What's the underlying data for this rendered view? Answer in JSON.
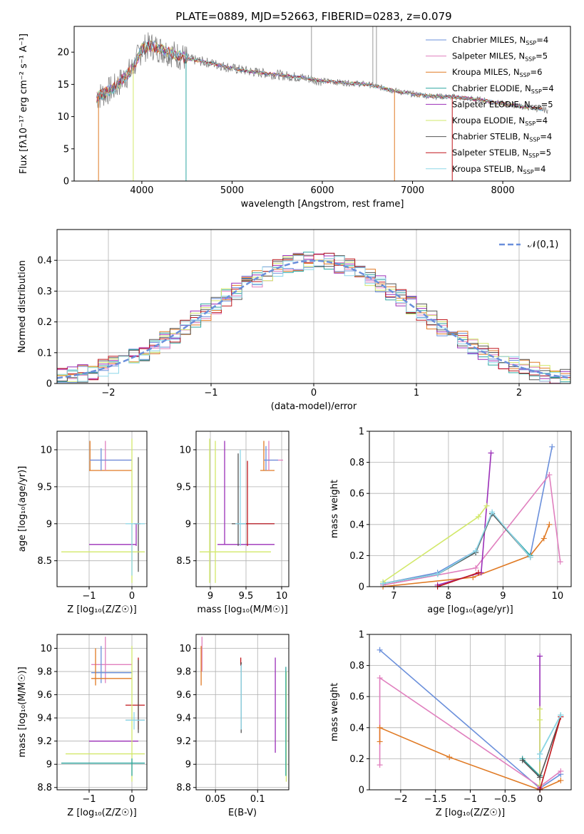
{
  "figure_title": "PLATE=0889, MJD=52663, FIBERID=0283, z=0.079",
  "models": [
    {
      "name": "Chabrier MILES",
      "nssp": "4",
      "color": "#6a8fdb"
    },
    {
      "name": "Salpeter MILES",
      "nssp": "5",
      "color": "#e07fbe"
    },
    {
      "name": "Kroupa MILES",
      "nssp": "6",
      "color": "#e07a24"
    },
    {
      "name": "Chabrier ELODIE",
      "nssp": "4",
      "color": "#2ca6a0"
    },
    {
      "name": "Salpeter ELODIE",
      "nssp": "5",
      "color": "#9b2fb8"
    },
    {
      "name": "Kroupa ELODIE",
      "nssp": "4",
      "color": "#d2e86a"
    },
    {
      "name": "Chabrier STELIB",
      "nssp": "4",
      "color": "#555555"
    },
    {
      "name": "Salpeter STELIB",
      "nssp": "5",
      "color": "#c0161b"
    },
    {
      "name": "Kroupa STELIB",
      "nssp": "4",
      "color": "#8dd7e8"
    }
  ],
  "chart_data": [
    {
      "id": "spectrum",
      "type": "line",
      "title": "PLATE=0889, MJD=52663, FIBERID=0283, z=0.079",
      "xlabel": "wavelength [Angstrom, rest frame]",
      "ylabel": "Flux [fλ10⁻¹⁷ erg cm⁻² s⁻¹ A⁻¹]",
      "xlim": [
        3250,
        8750
      ],
      "ylim": [
        0,
        24
      ],
      "xticks": [
        4000,
        5000,
        6000,
        7000,
        8000
      ],
      "yticks": [
        0,
        5,
        10,
        15,
        20
      ],
      "data_envelope": {
        "x": [
          3500,
          3700,
          3900,
          4000,
          4100,
          4300,
          4500,
          4800,
          5000,
          5200,
          5500,
          5800,
          6000,
          6300,
          6500,
          6800,
          7000,
          7200,
          7500,
          7800,
          8000,
          8200,
          8500
        ],
        "y": [
          13.0,
          14.5,
          17.5,
          20.5,
          21.0,
          20.0,
          19.0,
          18.2,
          17.5,
          17.0,
          16.5,
          16.0,
          15.5,
          15.2,
          15.0,
          14.0,
          13.5,
          13.2,
          13.0,
          12.5,
          12.0,
          11.6,
          11.0
        ]
      },
      "legend_location": "upper right",
      "grid": false
    },
    {
      "id": "residuals",
      "type": "histogram",
      "xlabel": "(data-model)/error",
      "ylabel": "Normed distribution",
      "xlim": [
        -2.5,
        2.5
      ],
      "ylim": [
        0,
        0.5
      ],
      "xticks": [
        -2,
        -1,
        0,
        1,
        2
      ],
      "yticks": [
        0.0,
        0.1,
        0.2,
        0.3,
        0.4
      ],
      "reference": {
        "label": "𝒩(0,1)",
        "mean": 0,
        "sigma": 1
      },
      "legend_location": "upper right",
      "grid": true
    },
    {
      "id": "age_vs_Z",
      "type": "errorbar",
      "xlabel": "Z [log₁₀(Z/Z☉)]",
      "ylabel": "age  [log₁₀(age/yr)]",
      "xlim": [
        -1.75,
        0.35
      ],
      "ylim": [
        8.15,
        10.25
      ],
      "xticks": [
        -1,
        0
      ],
      "yticks": [
        8.5,
        9.0,
        9.5,
        10.0
      ],
      "grid": true,
      "bars": [
        {
          "model": "Kroupa MILES",
          "hx": [
            -1.0,
            0.0
          ],
          "hy": 9.72,
          "vx": -0.98,
          "vy": [
            9.72,
            10.12
          ]
        },
        {
          "model": "Salpeter MILES",
          "hx": [
            -0.98,
            0.0
          ],
          "hy": 9.86,
          "vx": -0.62,
          "vy": [
            9.72,
            10.12
          ]
        },
        {
          "model": "Chabrier MILES",
          "hx": [
            -0.98,
            0.0
          ],
          "hy": 9.86,
          "vx": -0.72,
          "vy": [
            9.72,
            10.02
          ]
        },
        {
          "model": "Chabrier STELIB",
          "hx": [
            0.05,
            0.2
          ],
          "hy": 9.0,
          "vx": 0.15,
          "vy": [
            8.35,
            9.9
          ]
        },
        {
          "model": "Kroupa ELODIE",
          "hx": [
            -1.65,
            0.3
          ],
          "hy": 8.62,
          "vx": 0.0,
          "vy": [
            8.2,
            10.15
          ]
        },
        {
          "model": "Salpeter ELODIE",
          "hx": [
            -1.0,
            0.1
          ],
          "hy": 8.72,
          "vx": 0.1,
          "vy": [
            8.7,
            9.0
          ]
        },
        {
          "model": "Kroupa STELIB",
          "hx": [
            -0.15,
            0.3
          ],
          "hy": 9.0,
          "vx": 0.0,
          "vy": [
            8.3,
            9.0
          ]
        }
      ]
    },
    {
      "id": "age_vs_mass",
      "type": "errorbar",
      "xlabel": "mass [log₁₀(M/M☉)]",
      "ylabel": "",
      "xlim": [
        8.8,
        10.1
      ],
      "ylim": [
        8.15,
        10.25
      ],
      "xticks": [
        9.0,
        9.5,
        10.0
      ],
      "yticks": [
        8.5,
        9.0,
        9.5,
        10.0
      ],
      "grid": true,
      "bars": [
        {
          "model": "Kroupa ELODIE",
          "hx": [
            8.85,
            9.85
          ],
          "hy": 8.62,
          "vx": 8.99,
          "vy": [
            8.2,
            10.15
          ]
        },
        {
          "model": "Kroupa ELODIE",
          "hx": [
            9.05,
            9.05
          ],
          "hy": 8.62,
          "vx": 9.07,
          "vy": [
            8.2,
            10.12
          ]
        },
        {
          "model": "Salpeter ELODIE",
          "hx": [
            9.1,
            9.9
          ],
          "hy": 8.72,
          "vx": 9.2,
          "vy": [
            8.72,
            10.12
          ]
        },
        {
          "model": "Chabrier STELIB",
          "hx": [
            9.3,
            9.5
          ],
          "hy": 9.0,
          "vx": 9.39,
          "vy": [
            8.7,
            9.95
          ]
        },
        {
          "model": "Kroupa STELIB",
          "hx": [
            9.35,
            9.9
          ],
          "hy": 9.0,
          "vx": 9.42,
          "vy": [
            8.7,
            10.0
          ]
        },
        {
          "model": "Salpeter STELIB",
          "hx": [
            9.5,
            9.9
          ],
          "hy": 9.0,
          "vx": 9.52,
          "vy": [
            8.7,
            9.85
          ]
        },
        {
          "model": "Kroupa MILES",
          "hx": [
            9.7,
            9.9
          ],
          "hy": 9.72,
          "vx": 9.75,
          "vy": [
            9.72,
            10.12
          ]
        },
        {
          "model": "Salpeter MILES",
          "hx": [
            9.75,
            10.02
          ],
          "hy": 9.86,
          "vx": 9.82,
          "vy": [
            9.72,
            10.12
          ]
        },
        {
          "model": "Chabrier MILES",
          "hx": [
            9.75,
            9.95
          ],
          "hy": 9.86,
          "vx": 9.78,
          "vy": [
            9.72,
            10.05
          ]
        }
      ]
    },
    {
      "id": "massweight_vs_age",
      "type": "line",
      "xlabel": "age  [log₁₀(age/yr)]",
      "ylabel": "mass weight",
      "xlim": [
        6.55,
        10.25
      ],
      "ylim": [
        0,
        1.0
      ],
      "xticks": [
        7,
        8,
        9,
        10
      ],
      "yticks": [
        0.0,
        0.2,
        0.4,
        0.6,
        0.8,
        1.0
      ],
      "grid": true,
      "series": [
        {
          "model": "Chabrier MILES",
          "x": [
            6.8,
            7.8,
            8.5,
            8.8,
            9.5,
            9.9
          ],
          "y": [
            0.02,
            0.09,
            0.23,
            0.47,
            0.2,
            0.9
          ]
        },
        {
          "model": "Salpeter MILES",
          "x": [
            6.8,
            8.5,
            9.85,
            10.05
          ],
          "y": [
            0.01,
            0.12,
            0.72,
            0.16
          ]
        },
        {
          "model": "Kroupa MILES",
          "x": [
            6.8,
            8.45,
            9.5,
            9.75,
            9.85
          ],
          "y": [
            0.0,
            0.06,
            0.2,
            0.31,
            0.4
          ]
        },
        {
          "model": "Chabrier ELODIE",
          "x": [
            6.8,
            7.8,
            8.5,
            8.8,
            9.5
          ],
          "y": [
            0.02,
            0.08,
            0.22,
            0.47,
            0.2
          ]
        },
        {
          "model": "Salpeter ELODIE",
          "x": [
            7.8,
            8.6,
            8.78
          ],
          "y": [
            0.01,
            0.09,
            0.86
          ]
        },
        {
          "model": "Kroupa ELODIE",
          "x": [
            6.8,
            8.55,
            8.7
          ],
          "y": [
            0.03,
            0.45,
            0.52
          ]
        },
        {
          "model": "Chabrier STELIB",
          "x": [
            6.8,
            7.8,
            8.5,
            8.8,
            9.5
          ],
          "y": [
            0.02,
            0.08,
            0.22,
            0.47,
            0.19
          ]
        },
        {
          "model": "Salpeter STELIB",
          "x": [
            7.8,
            8.55
          ],
          "y": [
            0.0,
            0.09
          ]
        },
        {
          "model": "Kroupa STELIB",
          "x": [
            6.8,
            7.8,
            8.5,
            8.8,
            9.5
          ],
          "y": [
            0.02,
            0.08,
            0.23,
            0.48,
            0.19
          ]
        }
      ]
    },
    {
      "id": "mass_vs_Z",
      "type": "errorbar",
      "xlabel": "Z [log₁₀(Z/Z☉)]",
      "ylabel": "mass [log₁₀(M/M☉)]",
      "xlim": [
        -1.75,
        0.35
      ],
      "ylim": [
        8.78,
        10.12
      ],
      "xticks": [
        -1,
        0
      ],
      "yticks": [
        8.8,
        9.0,
        9.2,
        9.4,
        9.6,
        9.8,
        10.0
      ],
      "grid": true,
      "bars": [
        {
          "model": "Salpeter MILES",
          "hx": [
            -0.95,
            0.0
          ],
          "hy": 9.86,
          "vx": -0.62,
          "vy": [
            9.7,
            10.1
          ]
        },
        {
          "model": "Chabrier MILES",
          "hx": [
            -0.95,
            0.0
          ],
          "hy": 9.79,
          "vx": -0.72,
          "vy": [
            9.7,
            10.02
          ]
        },
        {
          "model": "Kroupa MILES",
          "hx": [
            -0.95,
            0.0
          ],
          "hy": 9.74,
          "vx": -0.85,
          "vy": [
            9.68,
            10.0
          ]
        },
        {
          "model": "Salpeter STELIB",
          "hx": [
            -0.15,
            0.3
          ],
          "hy": 9.51,
          "vx": 0.15,
          "vy": [
            9.3,
            9.92
          ]
        },
        {
          "model": "Chabrier STELIB",
          "hx": [
            -0.15,
            0.3
          ],
          "hy": 9.38,
          "vx": 0.15,
          "vy": [
            9.27,
            9.9
          ]
        },
        {
          "model": "Salpeter ELODIE",
          "hx": [
            -1.0,
            0.15
          ],
          "hy": 9.2,
          "vx": 0.0,
          "vy": [
            9.2,
            9.2
          ]
        },
        {
          "model": "Kroupa ELODIE",
          "hx": [
            -1.55,
            0.3
          ],
          "hy": 9.09,
          "vx": 0.0,
          "vy": [
            8.85,
            10.02
          ]
        },
        {
          "model": "Chabrier ELODIE",
          "hx": [
            -1.65,
            0.3
          ],
          "hy": 9.01,
          "vx": 0.0,
          "vy": [
            8.9,
            9.05
          ]
        },
        {
          "model": "Kroupa STELIB",
          "hx": [
            -0.15,
            0.3
          ],
          "hy": 9.38,
          "vx": 0.05,
          "vy": [
            9.3,
            9.45
          ]
        }
      ]
    },
    {
      "id": "mass_vs_ebv",
      "type": "errorbar",
      "xlabel": "E(B-V)",
      "ylabel": "",
      "xlim": [
        0.027,
        0.137
      ],
      "ylim": [
        8.78,
        10.12
      ],
      "xticks": [
        0.05,
        0.1
      ],
      "yticks": [
        8.8,
        9.0,
        9.2,
        9.4,
        9.6,
        9.8,
        10.0
      ],
      "grid": true,
      "bars": [
        {
          "model": "Salpeter MILES",
          "x": 0.034,
          "y": [
            9.8,
            10.1
          ]
        },
        {
          "model": "Kroupa MILES",
          "x": 0.033,
          "y": [
            9.68,
            10.02
          ]
        },
        {
          "model": "Salpeter STELIB",
          "x": 0.08,
          "y": [
            9.85,
            9.92
          ]
        },
        {
          "model": "Chabrier STELIB",
          "x": 0.0805,
          "y": [
            9.27,
            9.88
          ]
        },
        {
          "model": "Kroupa STELIB",
          "x": 0.0805,
          "y": [
            9.3,
            9.86
          ]
        },
        {
          "model": "Salpeter ELODIE",
          "x": 0.121,
          "y": [
            9.1,
            9.92
          ]
        },
        {
          "model": "Kroupa ELODIE",
          "x": 0.134,
          "y": [
            8.85,
            9.8
          ]
        },
        {
          "model": "Chabrier ELODIE",
          "x": 0.1335,
          "y": [
            8.9,
            9.84
          ]
        }
      ]
    },
    {
      "id": "massweight_vs_Z",
      "type": "line",
      "xlabel": "Z [log₁₀(Z/Z☉)]",
      "ylabel": "mass weight",
      "xlim": [
        -2.45,
        0.45
      ],
      "ylim": [
        0,
        1.0
      ],
      "xticks": [
        -2.0,
        -1.5,
        -1.0,
        -0.5,
        0.0
      ],
      "yticks": [
        0.0,
        0.2,
        0.4,
        0.6,
        0.8,
        1.0
      ],
      "grid": true,
      "series": [
        {
          "model": "Chabrier MILES",
          "x": [
            -2.3,
            0.0,
            0.3
          ],
          "y": [
            0.9,
            0.01,
            0.1
          ]
        },
        {
          "model": "Salpeter MILES",
          "x": [
            -2.3,
            -2.3,
            0.0,
            0.3
          ],
          "y": [
            0.16,
            0.72,
            0.02,
            0.12
          ]
        },
        {
          "model": "Kroupa MILES",
          "x": [
            -2.3,
            -2.3,
            -1.3,
            0.0,
            0.3
          ],
          "y": [
            0.31,
            0.4,
            0.21,
            0.0,
            0.06
          ]
        },
        {
          "model": "Chabrier ELODIE",
          "x": [
            -0.25,
            0.0,
            0.0,
            0.3
          ],
          "y": [
            0.2,
            0.09,
            0.23,
            0.48
          ]
        },
        {
          "model": "Salpeter ELODIE",
          "x": [
            0.0,
            0.0
          ],
          "y": [
            0.01,
            0.86
          ]
        },
        {
          "model": "Kroupa ELODIE",
          "x": [
            0.0,
            0.0,
            0.0
          ],
          "y": [
            0.03,
            0.45,
            0.52
          ]
        },
        {
          "model": "Chabrier STELIB",
          "x": [
            -0.25,
            0.0,
            0.3
          ],
          "y": [
            0.19,
            0.08,
            0.47
          ]
        },
        {
          "model": "Salpeter STELIB",
          "x": [
            0.0,
            0.3
          ],
          "y": [
            0.0,
            0.47
          ]
        },
        {
          "model": "Kroupa STELIB",
          "x": [
            0.0,
            0.0,
            0.3
          ],
          "y": [
            0.2,
            0.23,
            0.48
          ]
        }
      ]
    }
  ]
}
